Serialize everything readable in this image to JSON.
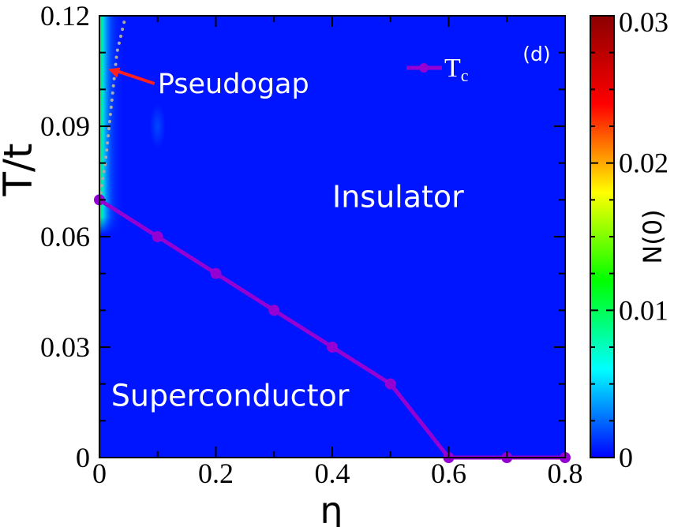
{
  "chart_data": {
    "type": "heatmap",
    "panel_label": "(d)",
    "xlabel": "η",
    "ylabel": "T/t",
    "xlim": [
      0,
      0.8
    ],
    "ylim": [
      0,
      0.12
    ],
    "x_ticks": [
      0,
      0.2,
      0.4,
      0.6,
      0.8
    ],
    "x_tick_labels": [
      "0",
      "0.2",
      "0.4",
      "0.6",
      "0.8"
    ],
    "y_ticks": [
      0,
      0.03,
      0.06,
      0.09,
      0.12
    ],
    "y_tick_labels": [
      "0",
      "0.03",
      "0.06",
      "0.09",
      "0.12"
    ],
    "colorbar": {
      "label": "N(0)",
      "range": [
        0,
        0.03
      ],
      "ticks": [
        0,
        0.01,
        0.02,
        0.03
      ],
      "tick_labels": [
        "0",
        "0.01",
        "0.02",
        "0.03"
      ],
      "colormap": [
        "#0000ff",
        "#00ffff",
        "#00ff00",
        "#ffff00",
        "#ff0000",
        "#8b0000"
      ]
    },
    "series": [
      {
        "name": "Tc",
        "legend_main": "T",
        "legend_sub": "c",
        "color": "#9400d3",
        "x": [
          0,
          0.1,
          0.2,
          0.3,
          0.4,
          0.5,
          0.6,
          0.7,
          0.8
        ],
        "y": [
          0.07,
          0.06,
          0.05,
          0.04,
          0.03,
          0.02,
          0,
          0,
          0
        ]
      }
    ],
    "pseudogap_boundary": {
      "color": "#aaaaaa",
      "x": [
        0.0,
        0.01,
        0.02,
        0.03,
        0.045
      ],
      "y": [
        0.07,
        0.08,
        0.095,
        0.11,
        0.12
      ]
    },
    "annotations": [
      {
        "key": "pseudogap",
        "text": "Pseudogap",
        "x": 0.1,
        "y": 0.102,
        "arrow_to": [
          0.015,
          0.1055
        ],
        "color": "#ffffff",
        "arrow_color": "#ff2020"
      },
      {
        "key": "insulator",
        "text": "Insulator",
        "x": 0.4,
        "y": 0.071,
        "color": "#ffffff"
      },
      {
        "key": "superconductor",
        "text": "Superconductor",
        "x": 0.02,
        "y": 0.017,
        "color": "#ffffff"
      }
    ],
    "heat_field": {
      "background_value": 0.0005,
      "peak_value": 0.011,
      "peak_x": 0.0,
      "decay_x": 0.04,
      "onset_y": 0.063,
      "faint_spot": {
        "x": 0.1,
        "y": 0.09,
        "value": 0.002
      }
    }
  }
}
